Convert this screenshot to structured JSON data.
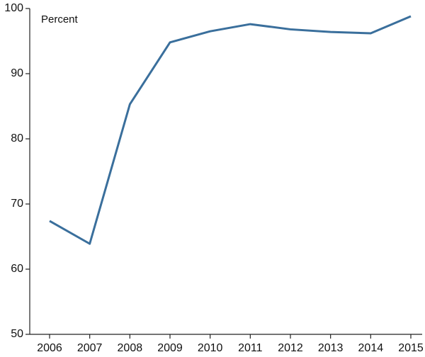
{
  "chart_data": {
    "type": "line",
    "y_label": "Percent",
    "categories": [
      "2006",
      "2007",
      "2008",
      "2009",
      "2010",
      "2011",
      "2012",
      "2013",
      "2014",
      "2015"
    ],
    "series": [
      {
        "color": "#3a6f9c",
        "values": [
          67.4,
          63.9,
          85.3,
          94.8,
          96.5,
          97.6,
          96.8,
          96.4,
          96.2,
          98.8
        ]
      }
    ],
    "ylim": [
      50,
      100
    ],
    "yticks": [
      50,
      60,
      70,
      80,
      90,
      100
    ],
    "grid": false
  }
}
